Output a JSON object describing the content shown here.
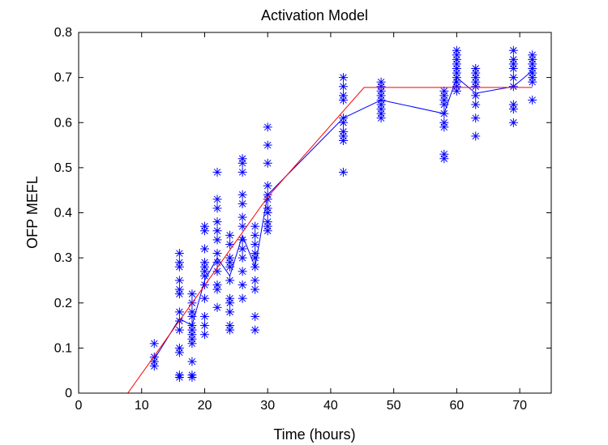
{
  "chart_data": {
    "type": "scatter",
    "title": "Activation Model",
    "xlabel": "Time (hours)",
    "ylabel": "OFP MEFL",
    "xlim": [
      0,
      75
    ],
    "ylim": [
      0,
      0.8
    ],
    "xticks": [
      0,
      10,
      20,
      30,
      40,
      50,
      60,
      70
    ],
    "yticks": [
      0,
      0.1,
      0.2,
      0.3,
      0.4,
      0.5,
      0.6,
      0.7,
      0.8
    ],
    "xtick_labels": [
      "0",
      "10",
      "20",
      "30",
      "40",
      "50",
      "60",
      "70"
    ],
    "ytick_labels": [
      "0",
      "0.1",
      "0.2",
      "0.3",
      "0.4",
      "0.5",
      "0.6",
      "0.7",
      "0.8"
    ],
    "grid": false,
    "legend": "none",
    "colors": {
      "points": "#0000ff",
      "mean_line": "#0000ff",
      "model_line": "#ff0000",
      "axes": "#000000"
    },
    "marker": "asterisk",
    "series": [
      {
        "type": "scatter",
        "points": [
          [
            12,
            0.11
          ],
          [
            12,
            0.08
          ],
          [
            12,
            0.07
          ],
          [
            12,
            0.06
          ],
          [
            16,
            0.31
          ],
          [
            16,
            0.29
          ],
          [
            16,
            0.28
          ],
          [
            16,
            0.25
          ],
          [
            16,
            0.23
          ],
          [
            16,
            0.22
          ],
          [
            16,
            0.18
          ],
          [
            16,
            0.16
          ],
          [
            16,
            0.14
          ],
          [
            16,
            0.1
          ],
          [
            16,
            0.09
          ],
          [
            16,
            0.04
          ],
          [
            16,
            0.035
          ],
          [
            18,
            0.22
          ],
          [
            18,
            0.2
          ],
          [
            18,
            0.18
          ],
          [
            18,
            0.17
          ],
          [
            18,
            0.15
          ],
          [
            18,
            0.14
          ],
          [
            18,
            0.13
          ],
          [
            18,
            0.12
          ],
          [
            18,
            0.11
          ],
          [
            18,
            0.07
          ],
          [
            18,
            0.04
          ],
          [
            18,
            0.035
          ],
          [
            20,
            0.37
          ],
          [
            20,
            0.36
          ],
          [
            20,
            0.32
          ],
          [
            20,
            0.29
          ],
          [
            20,
            0.28
          ],
          [
            20,
            0.27
          ],
          [
            20,
            0.26
          ],
          [
            20,
            0.24
          ],
          [
            20,
            0.21
          ],
          [
            20,
            0.17
          ],
          [
            20,
            0.15
          ],
          [
            20,
            0.13
          ],
          [
            22,
            0.49
          ],
          [
            22,
            0.43
          ],
          [
            22,
            0.41
          ],
          [
            22,
            0.38
          ],
          [
            22,
            0.36
          ],
          [
            22,
            0.34
          ],
          [
            22,
            0.31
          ],
          [
            22,
            0.29
          ],
          [
            22,
            0.27
          ],
          [
            22,
            0.24
          ],
          [
            22,
            0.23
          ],
          [
            22,
            0.19
          ],
          [
            24,
            0.35
          ],
          [
            24,
            0.33
          ],
          [
            24,
            0.3
          ],
          [
            24,
            0.29
          ],
          [
            24,
            0.28
          ],
          [
            24,
            0.25
          ],
          [
            24,
            0.21
          ],
          [
            24,
            0.2
          ],
          [
            24,
            0.18
          ],
          [
            24,
            0.15
          ],
          [
            24,
            0.14
          ],
          [
            26,
            0.52
          ],
          [
            26,
            0.51
          ],
          [
            26,
            0.49
          ],
          [
            26,
            0.44
          ],
          [
            26,
            0.42
          ],
          [
            26,
            0.39
          ],
          [
            26,
            0.37
          ],
          [
            26,
            0.34
          ],
          [
            26,
            0.32
          ],
          [
            26,
            0.3
          ],
          [
            26,
            0.27
          ],
          [
            26,
            0.24
          ],
          [
            26,
            0.21
          ],
          [
            28,
            0.37
          ],
          [
            28,
            0.35
          ],
          [
            28,
            0.33
          ],
          [
            28,
            0.31
          ],
          [
            28,
            0.3
          ],
          [
            28,
            0.28
          ],
          [
            28,
            0.25
          ],
          [
            28,
            0.23
          ],
          [
            28,
            0.17
          ],
          [
            28,
            0.14
          ],
          [
            30,
            0.59
          ],
          [
            30,
            0.55
          ],
          [
            30,
            0.51
          ],
          [
            30,
            0.46
          ],
          [
            30,
            0.44
          ],
          [
            30,
            0.43
          ],
          [
            30,
            0.41
          ],
          [
            30,
            0.4
          ],
          [
            30,
            0.38
          ],
          [
            30,
            0.37
          ],
          [
            30,
            0.36
          ],
          [
            42,
            0.7
          ],
          [
            42,
            0.68
          ],
          [
            42,
            0.66
          ],
          [
            42,
            0.65
          ],
          [
            42,
            0.61
          ],
          [
            42,
            0.6
          ],
          [
            42,
            0.58
          ],
          [
            42,
            0.57
          ],
          [
            42,
            0.56
          ],
          [
            42,
            0.49
          ],
          [
            48,
            0.69
          ],
          [
            48,
            0.68
          ],
          [
            48,
            0.67
          ],
          [
            48,
            0.66
          ],
          [
            48,
            0.65
          ],
          [
            48,
            0.64
          ],
          [
            48,
            0.63
          ],
          [
            48,
            0.62
          ],
          [
            48,
            0.61
          ],
          [
            58,
            0.67
          ],
          [
            58,
            0.66
          ],
          [
            58,
            0.65
          ],
          [
            58,
            0.64
          ],
          [
            58,
            0.62
          ],
          [
            58,
            0.6
          ],
          [
            58,
            0.59
          ],
          [
            58,
            0.53
          ],
          [
            58,
            0.52
          ],
          [
            60,
            0.76
          ],
          [
            60,
            0.75
          ],
          [
            60,
            0.74
          ],
          [
            60,
            0.73
          ],
          [
            60,
            0.72
          ],
          [
            60,
            0.71
          ],
          [
            60,
            0.7
          ],
          [
            60,
            0.69
          ],
          [
            60,
            0.68
          ],
          [
            60,
            0.67
          ],
          [
            63,
            0.72
          ],
          [
            63,
            0.71
          ],
          [
            63,
            0.7
          ],
          [
            63,
            0.69
          ],
          [
            63,
            0.68
          ],
          [
            63,
            0.66
          ],
          [
            63,
            0.64
          ],
          [
            63,
            0.61
          ],
          [
            63,
            0.57
          ],
          [
            69,
            0.76
          ],
          [
            69,
            0.74
          ],
          [
            69,
            0.73
          ],
          [
            69,
            0.72
          ],
          [
            69,
            0.7
          ],
          [
            69,
            0.68
          ],
          [
            69,
            0.64
          ],
          [
            69,
            0.63
          ],
          [
            69,
            0.6
          ],
          [
            72,
            0.75
          ],
          [
            72,
            0.74
          ],
          [
            72,
            0.73
          ],
          [
            72,
            0.72
          ],
          [
            72,
            0.71
          ],
          [
            72,
            0.7
          ],
          [
            72,
            0.69
          ],
          [
            72,
            0.65
          ]
        ]
      },
      {
        "type": "line",
        "x": [
          12,
          16,
          18,
          20,
          22,
          24,
          26,
          28,
          30,
          42,
          48,
          58,
          60,
          63,
          69,
          72
        ],
        "y": [
          0.075,
          0.165,
          0.15,
          0.25,
          0.3,
          0.26,
          0.35,
          0.28,
          0.44,
          0.61,
          0.65,
          0.62,
          0.7,
          0.665,
          0.68,
          0.715
        ]
      },
      {
        "type": "line",
        "x": [
          7.8,
          30,
          45.3,
          72
        ],
        "y": [
          0,
          0.435,
          0.678,
          0.678
        ]
      }
    ]
  }
}
